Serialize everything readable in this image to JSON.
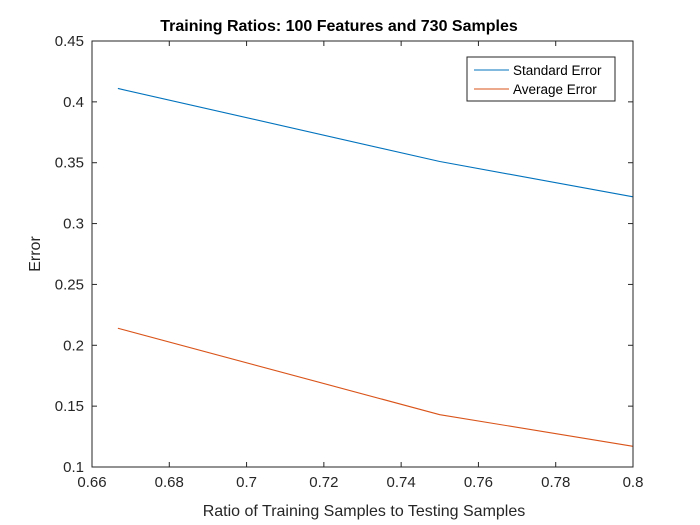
{
  "chart_data": {
    "type": "line",
    "title": "Training Ratios: 100 Features and 730 Samples",
    "xlabel": "Ratio of Training Samples to Testing Samples",
    "ylabel": "Error",
    "xlim": [
      0.66,
      0.8
    ],
    "ylim": [
      0.1,
      0.45
    ],
    "x_ticks": [
      0.66,
      0.68,
      0.7,
      0.72,
      0.74,
      0.76,
      0.78,
      0.8
    ],
    "x_tick_labels": [
      "0.66",
      "0.68",
      "0.7",
      "0.72",
      "0.74",
      "0.76",
      "0.78",
      "0.8"
    ],
    "y_ticks": [
      0.1,
      0.15,
      0.2,
      0.25,
      0.3,
      0.35,
      0.4,
      0.45
    ],
    "y_tick_labels": [
      "0.1",
      "0.15",
      "0.2",
      "0.25",
      "0.3",
      "0.35",
      "0.4",
      "0.45"
    ],
    "grid": false,
    "legend_position": "top-right",
    "series": [
      {
        "name": "Standard Error",
        "color": "#0072BD",
        "x": [
          0.6667,
          0.75,
          0.8
        ],
        "y": [
          0.411,
          0.351,
          0.322
        ]
      },
      {
        "name": "Average Error",
        "color": "#D95319",
        "x": [
          0.6667,
          0.75,
          0.8
        ],
        "y": [
          0.214,
          0.143,
          0.117
        ]
      }
    ]
  }
}
